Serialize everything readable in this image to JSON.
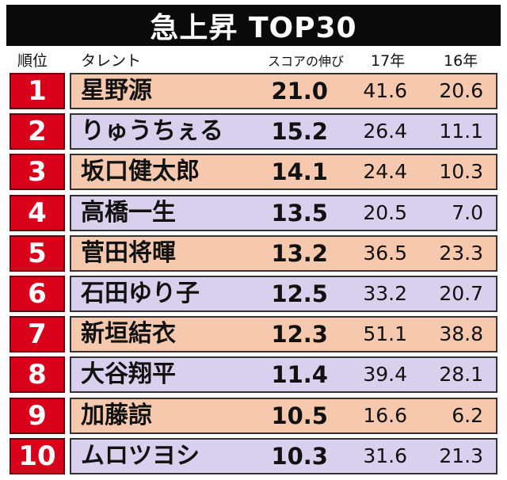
{
  "title": "急上昇 TOP30",
  "headers": {
    "rank": "順位",
    "talent": "タレント",
    "score": "スコアの伸び",
    "y17": "17年",
    "y16": "16年"
  },
  "rows": [
    {
      "rank": "1",
      "name": "星野源",
      "score": "21.0",
      "y17": "41.6",
      "y16": "20.6",
      "color": "#f6c8ad"
    },
    {
      "rank": "2",
      "name": "りゅうちぇる",
      "score": "15.2",
      "y17": "26.4",
      "y16": "11.1",
      "color": "#d8d0ec"
    },
    {
      "rank": "3",
      "name": "坂口健太郎",
      "score": "14.1",
      "y17": "24.4",
      "y16": "10.3",
      "color": "#f6c8ad"
    },
    {
      "rank": "4",
      "name": "高橋一生",
      "score": "13.5",
      "y17": "20.5",
      "y16": "7.0",
      "color": "#d8d0ec"
    },
    {
      "rank": "5",
      "name": "菅田将暉",
      "score": "13.2",
      "y17": "36.5",
      "y16": "23.3",
      "color": "#f6c8ad"
    },
    {
      "rank": "6",
      "name": "石田ゆり子",
      "score": "12.5",
      "y17": "33.2",
      "y16": "20.7",
      "color": "#d8d0ec"
    },
    {
      "rank": "7",
      "name": "新垣結衣",
      "score": "12.3",
      "y17": "51.1",
      "y16": "38.8",
      "color": "#f6c8ad"
    },
    {
      "rank": "8",
      "name": "大谷翔平",
      "score": "11.4",
      "y17": "39.4",
      "y16": "28.1",
      "color": "#d8d0ec"
    },
    {
      "rank": "9",
      "name": "加藤諒",
      "score": "10.5",
      "y17": "16.6",
      "y16": "6.2",
      "color": "#f6c8ad"
    },
    {
      "rank": "10",
      "name": "ムロツヨシ",
      "score": "10.3",
      "y17": "31.6",
      "y16": "21.3",
      "color": "#d8d0ec"
    }
  ]
}
